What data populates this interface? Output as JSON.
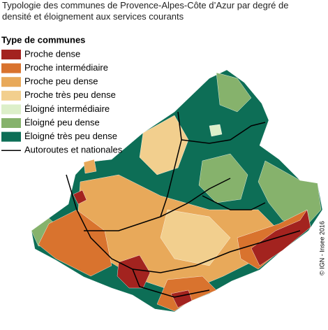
{
  "title": {
    "lines": [
      "Typologie des communes de Provence-Alpes-Côte d’Azur par degré de",
      "densité et éloignement aux services courants"
    ]
  },
  "legend": {
    "title": "Type de communes",
    "items": [
      {
        "label": "Proche dense",
        "color": "#a3231f"
      },
      {
        "label": "Proche intermédiaire",
        "color": "#d9732e"
      },
      {
        "label": "Proche peu dense",
        "color": "#e8a95a"
      },
      {
        "label": "Proche très peu dense",
        "color": "#f2cf8e"
      },
      {
        "label": "Éloigné intermédiaire",
        "color": "#dcefc9"
      },
      {
        "label": "Éloigné peu dense",
        "color": "#86b26c"
      },
      {
        "label": "Éloigné très peu dense",
        "color": "#0d6e56"
      }
    ],
    "road": {
      "label": "Autoroutes et nationales",
      "color": "#000000"
    }
  },
  "copyright": "© IGN - Insee 2016"
}
